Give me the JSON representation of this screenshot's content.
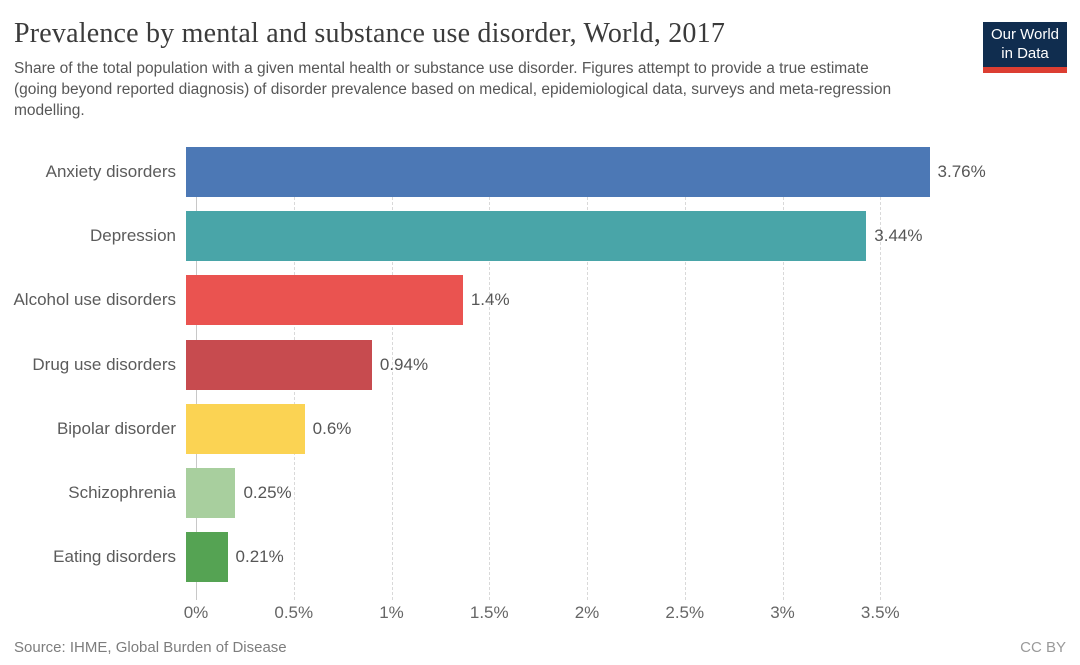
{
  "header": {
    "title": "Prevalence by mental and substance use disorder, World, 2017",
    "subtitle": "Share of the total population with a given mental health or substance use disorder. Figures attempt to provide a true estimate (going beyond reported diagnosis) of disorder prevalence based on medical, epidemiological data, surveys and meta-regression modelling.",
    "logo": {
      "line1": "Our World",
      "line2": "in Data",
      "bg_color": "#102d4f",
      "stripe_color": "#dc3e32"
    }
  },
  "chart_data": {
    "type": "bar",
    "orientation": "horizontal",
    "title": "Prevalence by mental and substance use disorder, World, 2017",
    "categories": [
      "Anxiety disorders",
      "Depression",
      "Alcohol use disorders",
      "Drug use disorders",
      "Bipolar disorder",
      "Schizophrenia",
      "Eating disorders"
    ],
    "values": [
      3.76,
      3.44,
      1.4,
      0.94,
      0.6,
      0.25,
      0.21
    ],
    "value_labels": [
      "3.76%",
      "3.44%",
      "1.4%",
      "0.94%",
      "0.6%",
      "0.25%",
      "0.21%"
    ],
    "bar_colors": [
      "#4c78b5",
      "#49a5a8",
      "#ea5350",
      "#c74b4f",
      "#fbd353",
      "#a8cf9e",
      "#55a353"
    ],
    "xlabel": "",
    "ylabel": "",
    "xlim": [
      0,
      4.45
    ],
    "x_ticks": [
      0,
      0.5,
      1,
      1.5,
      2,
      2.5,
      3,
      3.5
    ],
    "x_tick_labels": [
      "0%",
      "0.5%",
      "1%",
      "1.5%",
      "2%",
      "2.5%",
      "3%",
      "3.5%"
    ],
    "grid": "vertical-dashed",
    "legend": "none"
  },
  "footer": {
    "source": "Source: IHME, Global Burden of Disease",
    "license": "CC BY"
  }
}
